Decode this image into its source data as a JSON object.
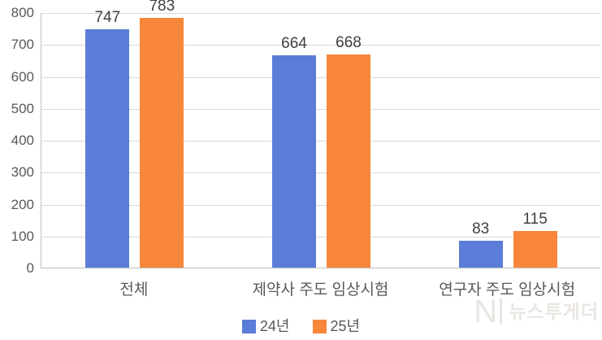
{
  "chart_data": {
    "type": "bar",
    "categories": [
      "전체",
      "제약사 주도 임상시험",
      "연구자 주도 임상시험"
    ],
    "series": [
      {
        "name": "24년",
        "color": "#5b7dd8",
        "values": [
          747,
          664,
          83
        ]
      },
      {
        "name": "25년",
        "color": "#f8863b",
        "values": [
          783,
          668,
          115
        ]
      }
    ],
    "ylim": [
      0,
      800
    ],
    "ytick_step": 100,
    "ytick_labels": [
      "0",
      "100",
      "200",
      "300",
      "400",
      "500",
      "600",
      "700",
      "800"
    ],
    "grid": true,
    "legend_position": "bottom",
    "value_labels_shown": true,
    "colors": {
      "gridline": "#d9d9d9",
      "axis_line": "#bfbfbf",
      "tick_label": "#595959",
      "value_label": "#404040",
      "background": "#ffffff"
    }
  },
  "watermark": {
    "logo": "N",
    "text": "뉴스투게더"
  }
}
